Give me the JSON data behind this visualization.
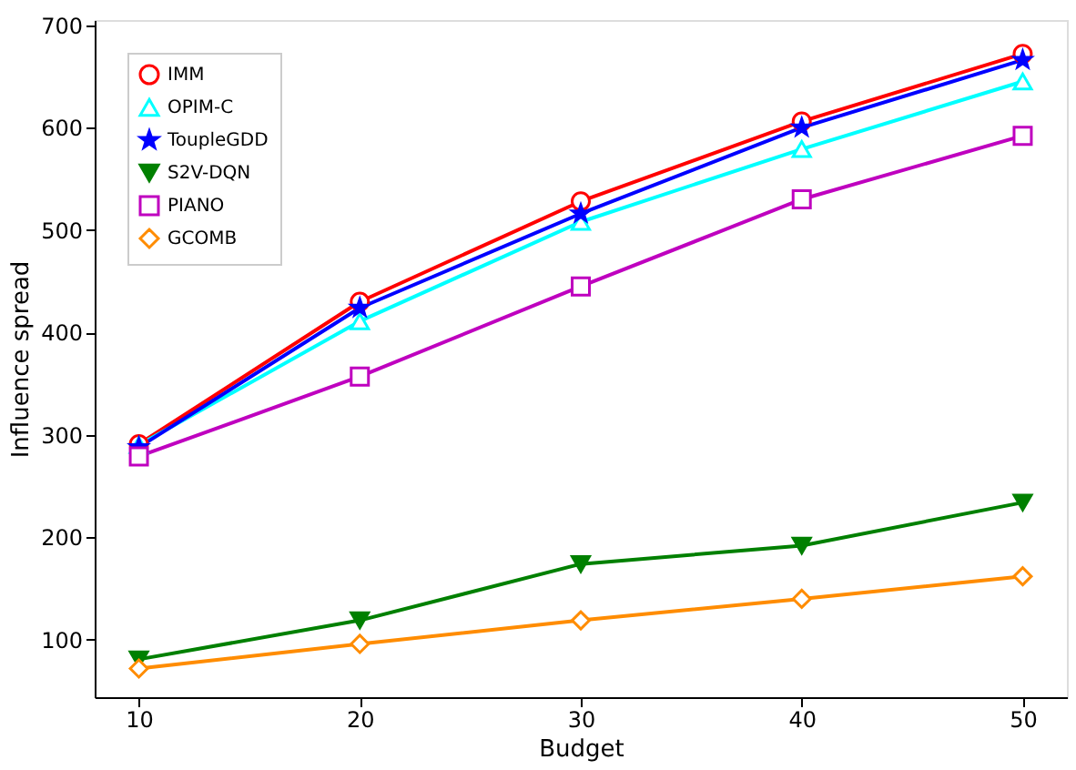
{
  "chart_data": {
    "type": "line",
    "xlabel": "Budget",
    "ylabel": "Influence spread",
    "x": [
      10,
      20,
      30,
      40,
      50
    ],
    "series": [
      {
        "name": "IMM",
        "color": "#ff0000",
        "marker": "circle",
        "values": [
          291,
          430,
          528,
          606,
          672
        ]
      },
      {
        "name": "OPIM-C",
        "color": "#00ffff",
        "marker": "triangle",
        "values": [
          290,
          411,
          508,
          579,
          645
        ]
      },
      {
        "name": "ToupleGDD",
        "color": "#0000ff",
        "marker": "star",
        "values": [
          288,
          424,
          516,
          600,
          666
        ]
      },
      {
        "name": "S2V-DQN",
        "color": "#008000",
        "marker": "triangle_down",
        "values": [
          81,
          119,
          174,
          192,
          234
        ]
      },
      {
        "name": "PIANO",
        "color": "#bf00bf",
        "marker": "square",
        "values": [
          279,
          357,
          445,
          530,
          592
        ]
      },
      {
        "name": "GCOMB",
        "color": "#ff8c00",
        "marker": "diamond",
        "values": [
          72,
          96,
          119,
          140,
          162
        ]
      }
    ],
    "xlim": [
      8,
      52
    ],
    "xticks": [
      10,
      20,
      30,
      40,
      50
    ],
    "ylim": [
      44,
      705
    ],
    "yticks": [
      100,
      200,
      300,
      400,
      500,
      600,
      700
    ],
    "grid": false,
    "legend": "top left",
    "line_style": "solid"
  }
}
